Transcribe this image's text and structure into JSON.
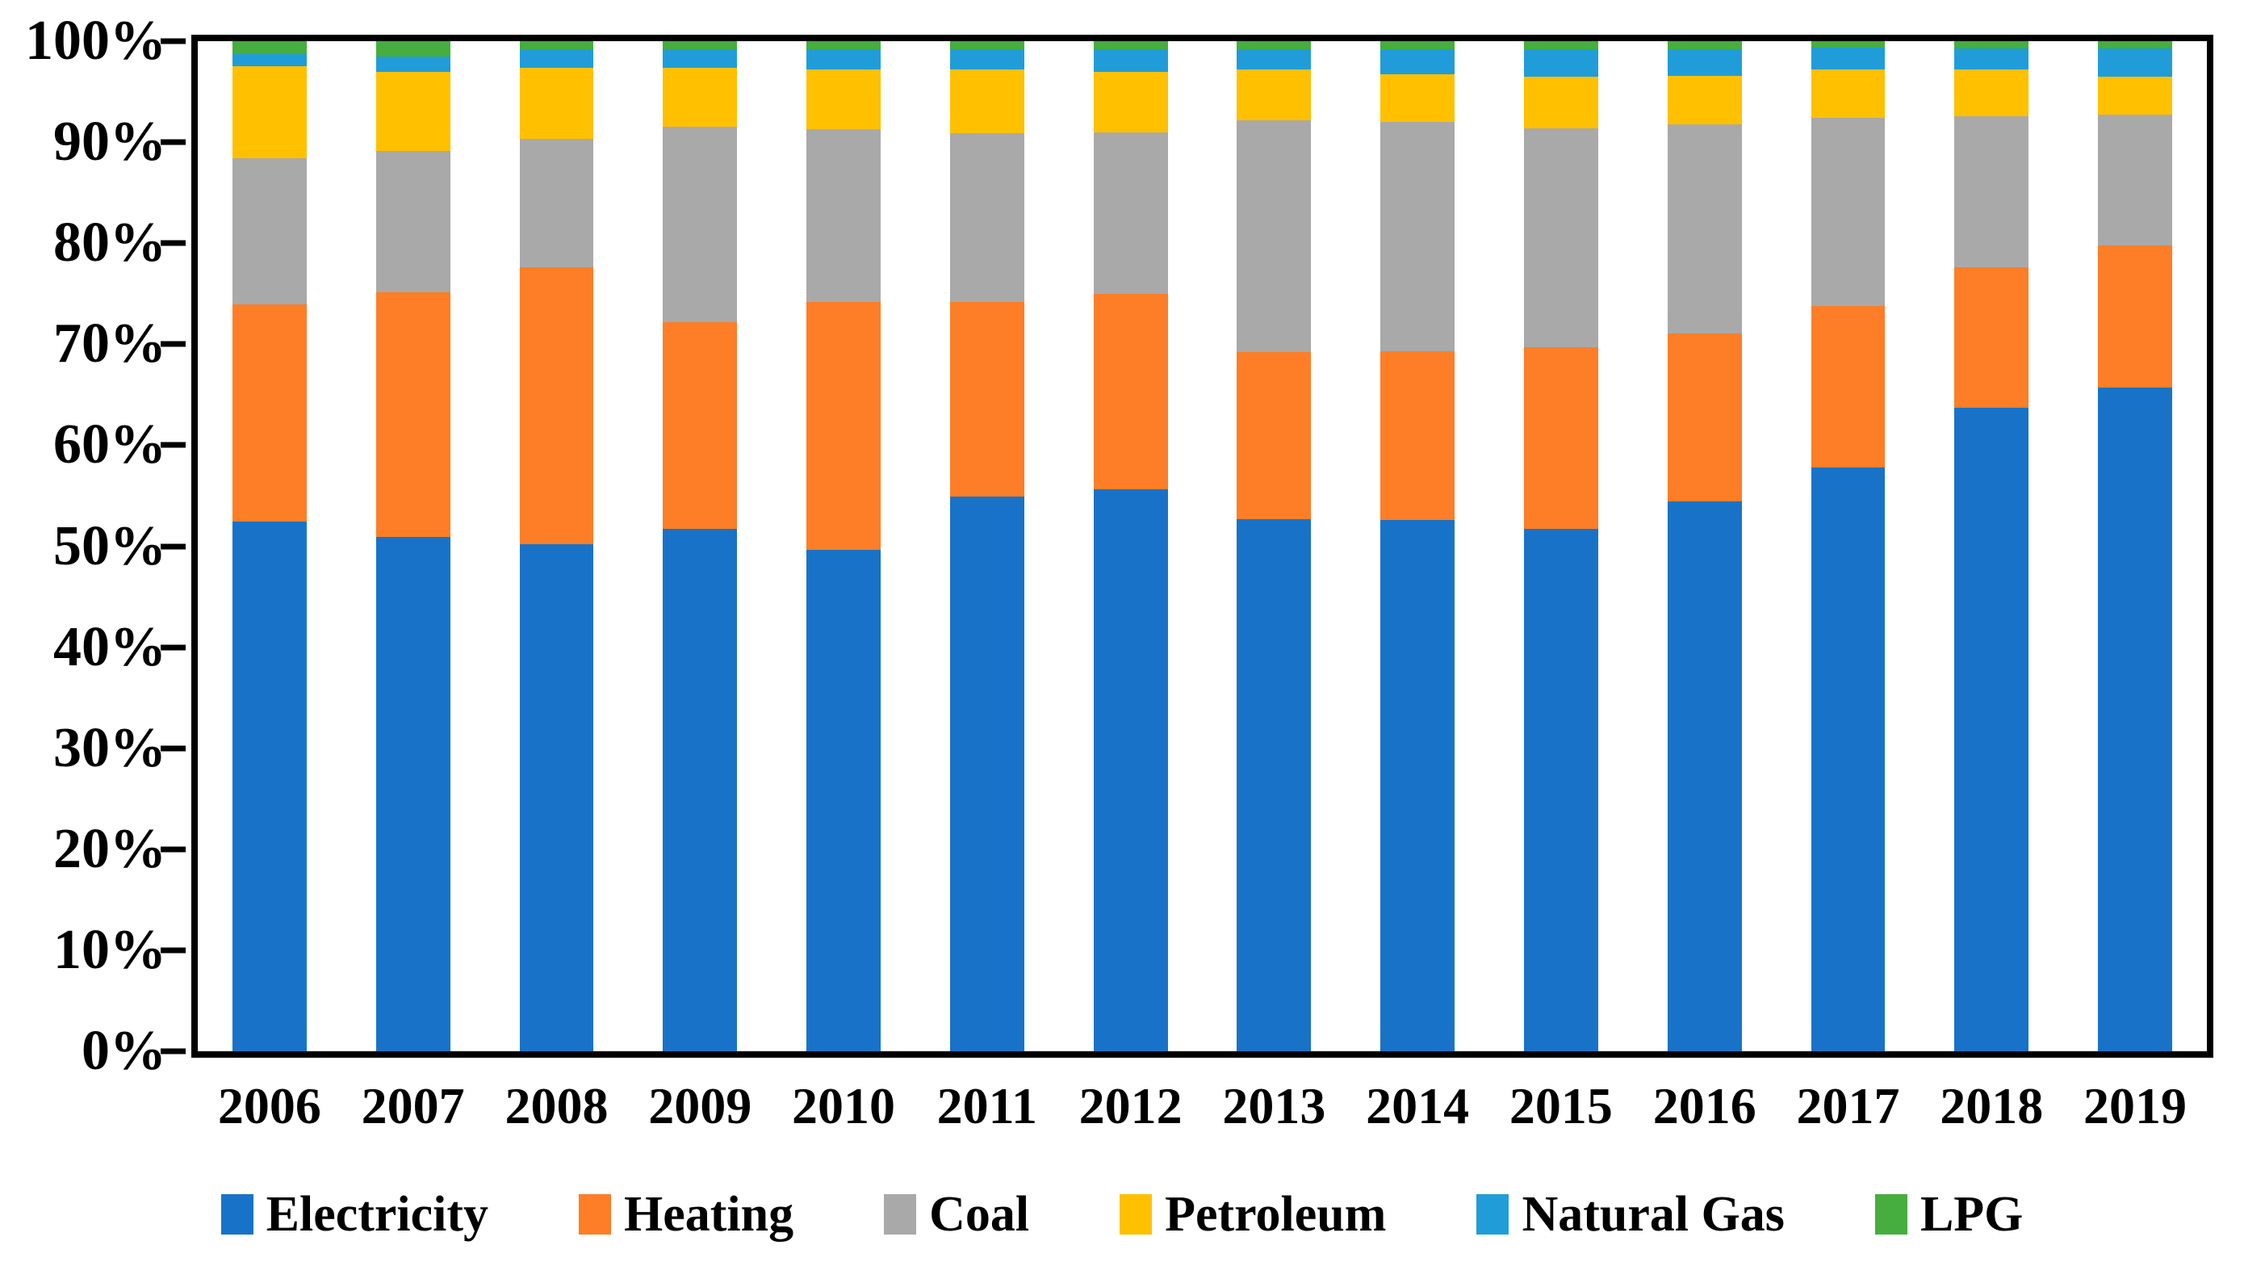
{
  "chart_data": {
    "type": "bar",
    "subtype": "100-percent-stacked-column",
    "title": "",
    "xlabel": "",
    "ylabel": "",
    "grid": false,
    "legend_position": "bottom",
    "categories": [
      "2006",
      "2007",
      "2008",
      "2009",
      "2010",
      "2011",
      "2012",
      "2013",
      "2014",
      "2015",
      "2016",
      "2017",
      "2018",
      "2019"
    ],
    "series": [
      {
        "name": "Electricity",
        "color": "#1873C8",
        "values": [
          52.4,
          50.9,
          50.2,
          51.7,
          49.6,
          54.9,
          55.6,
          52.7,
          52.6,
          51.7,
          54.4,
          57.8,
          63.7,
          65.7
        ]
      },
      {
        "name": "Heating",
        "color": "#FD7E26",
        "values": [
          21.5,
          24.2,
          27.4,
          20.5,
          24.6,
          19.3,
          19.4,
          16.5,
          16.7,
          18.0,
          16.7,
          16.0,
          13.9,
          14.1
        ]
      },
      {
        "name": "Coal",
        "color": "#A9A9A9",
        "values": [
          14.5,
          14.0,
          12.7,
          19.3,
          17.1,
          16.7,
          16.0,
          23.0,
          22.7,
          21.7,
          20.7,
          18.6,
          15.0,
          12.9
        ]
      },
      {
        "name": "Petroleum",
        "color": "#FFC000",
        "values": [
          9.1,
          7.9,
          7.1,
          5.9,
          5.9,
          6.3,
          6.0,
          5.0,
          4.7,
          5.1,
          4.8,
          4.8,
          4.6,
          3.8
        ]
      },
      {
        "name": "Natural Gas",
        "color": "#209DD8",
        "values": [
          1.2,
          1.5,
          1.8,
          1.8,
          2.0,
          2.0,
          2.2,
          2.0,
          2.5,
          2.7,
          2.6,
          2.2,
          2.1,
          2.8
        ]
      },
      {
        "name": "LPG",
        "color": "#45AE3E",
        "values": [
          1.3,
          1.5,
          0.8,
          0.8,
          0.8,
          0.8,
          0.8,
          0.8,
          0.8,
          0.8,
          0.8,
          0.6,
          0.7,
          0.7
        ]
      }
    ],
    "y_axis": {
      "min": 0,
      "max": 100,
      "tick_step": 10,
      "tick_suffix": "%",
      "tick_labels": [
        "0%",
        "10%",
        "20%",
        "30%",
        "40%",
        "50%",
        "60%",
        "70%",
        "80%",
        "90%",
        "100%"
      ]
    },
    "axis_color": "#000000"
  }
}
